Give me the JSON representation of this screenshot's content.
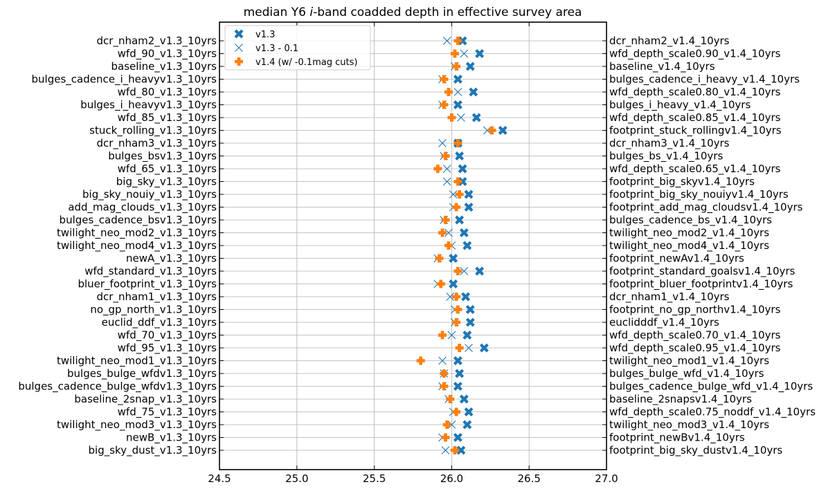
{
  "chart_data": {
    "type": "scatter",
    "title_parts": [
      "median Y6 ",
      "i",
      "-band coadded depth in effective survey area"
    ],
    "xlim": [
      24.5,
      27.0
    ],
    "xticks": [
      "24.5",
      "25.0",
      "25.5",
      "26.0",
      "26.5",
      "27.0"
    ],
    "grid": true,
    "legend_position": "top-left",
    "colors": {
      "blue": "#1f77b4",
      "orange": "#ff7f0e"
    },
    "left_labels": [
      "dcr_nham2_v1.3_10yrs",
      "wfd_90_v1.3_10yrs",
      "baseline_v1.3_10yrs",
      "bulges_cadence_i_heavyv1.3_10yrs",
      "wfd_80_v1.3_10yrs",
      "bulges_i_heavyv1.3_10yrs",
      "wfd_85_v1.3_10yrs",
      "stuck_rolling_v1.3_10yrs",
      "dcr_nham3_v1.3_10yrs",
      "bulges_bsv1.3_10yrs",
      "wfd_65_v1.3_10yrs",
      "big_sky_v1.3_10yrs",
      "big_sky_nouiy_v1.3_10yrs",
      "add_mag_clouds_v1.3_10yrs",
      "bulges_cadence_bsv1.3_10yrs",
      "twilight_neo_mod2_v1.3_10yrs",
      "twilight_neo_mod4_v1.3_10yrs",
      "newA_v1.3_10yrs",
      "wfd_standard_v1.3_10yrs",
      "bluer_footprint_v1.3_10yrs",
      "dcr_nham1_v1.3_10yrs",
      "no_gp_north_v1.3_10yrs",
      "euclid_ddf_v1.3_10yrs",
      "wfd_70_v1.3_10yrs",
      "wfd_95_v1.3_10yrs",
      "twilight_neo_mod1_v1.3_10yrs",
      "bulges_bulge_wfdv1.3_10yrs",
      "bulges_cadence_bulge_wfdv1.3_10yrs",
      "baseline_2snap_v1.3_10yrs",
      "wfd_75_v1.3_10yrs",
      "twilight_neo_mod3_v1.3_10yrs",
      "newB_v1.3_10yrs",
      "big_sky_dust_v1.3_10yrs"
    ],
    "right_labels": [
      "dcr_nham2_v1.4_10yrs",
      "wfd_depth_scale0.90_v1.4_10yrs",
      "baseline_v1.4_10yrs",
      "bulges_cadence_i_heavy_v1.4_10yrs",
      "wfd_depth_scale0.80_v1.4_10yrs",
      "bulges_i_heavy_v1.4_10yrs",
      "wfd_depth_scale0.85_v1.4_10yrs",
      "footprint_stuck_rollingv1.4_10yrs",
      "dcr_nham3_v1.4_10yrs",
      "bulges_bs_v1.4_10yrs",
      "wfd_depth_scale0.65_v1.4_10yrs",
      "footprint_big_skyv1.4_10yrs",
      "footprint_big_sky_nouiyv1.4_10yrs",
      "footprint_add_mag_cloudsv1.4_10yrs",
      "bulges_cadence_bs_v1.4_10yrs",
      "twilight_neo_mod2_v1.4_10yrs",
      "twilight_neo_mod4_v1.4_10yrs",
      "footprint_newAv1.4_10yrs",
      "footprint_standard_goalsv1.4_10yrs",
      "footprint_bluer_footprintv1.4_10yrs",
      "dcr_nham1_v1.4_10yrs",
      "footprint_no_gp_northv1.4_10yrs",
      "euclidddf_v1.4_10yrs",
      "wfd_depth_scale0.70_v1.4_10yrs",
      "wfd_depth_scale0.95_v1.4_10yrs",
      "twilight_neo_mod1_v1.4_10yrs",
      "bulges_bulge_wfd_v1.4_10yrs",
      "bulges_cadence_bulge_wfd_v1.4_10yrs",
      "baseline_2snapsv1.4_10yrs",
      "wfd_depth_scale0.75_noddf_v1.4_10yrs",
      "twilight_neo_mod3_v1.4_10yrs",
      "footprint_newBv1.4_10yrs",
      "footprint_big_sky_dustv1.4_10yrs"
    ],
    "series": [
      {
        "name": "v1.3",
        "marker": "X-filled",
        "color": "#1f77b4",
        "values": [
          26.07,
          26.18,
          26.12,
          26.04,
          26.14,
          26.04,
          26.16,
          26.33,
          26.04,
          26.05,
          26.07,
          26.07,
          26.11,
          26.11,
          26.05,
          26.08,
          26.1,
          26.01,
          26.18,
          26.01,
          26.09,
          26.12,
          26.12,
          26.1,
          26.21,
          26.04,
          26.05,
          26.04,
          26.08,
          26.11,
          26.1,
          26.04,
          26.06
        ]
      },
      {
        "name": "v1.3 - 0.1",
        "marker": "x-thin",
        "color": "#1f77b4",
        "values": [
          25.97,
          26.08,
          26.02,
          25.94,
          26.04,
          25.94,
          26.06,
          26.23,
          25.94,
          25.95,
          25.97,
          25.97,
          26.01,
          26.01,
          25.95,
          25.98,
          26.0,
          25.91,
          26.08,
          25.91,
          25.99,
          26.02,
          26.02,
          26.0,
          26.11,
          25.94,
          25.95,
          25.94,
          25.98,
          26.01,
          26.0,
          25.94,
          25.96
        ]
      },
      {
        "name": "v1.4 (w/ -0.1mag cuts)",
        "marker": "P-filled",
        "color": "#ff7f0e",
        "values": [
          26.04,
          26.02,
          26.03,
          25.95,
          25.98,
          25.95,
          26.0,
          26.26,
          26.04,
          25.96,
          25.91,
          26.04,
          26.05,
          26.03,
          25.96,
          25.94,
          25.98,
          25.92,
          26.04,
          25.93,
          26.03,
          26.04,
          26.03,
          25.94,
          26.05,
          25.8,
          25.95,
          25.95,
          25.99,
          26.03,
          25.97,
          25.96,
          26.02
        ]
      }
    ]
  }
}
